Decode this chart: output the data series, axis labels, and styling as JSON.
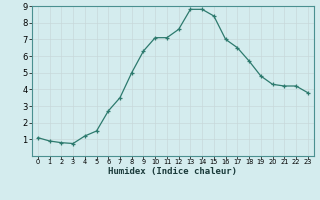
{
  "x": [
    0,
    1,
    2,
    3,
    4,
    5,
    6,
    7,
    8,
    9,
    10,
    11,
    12,
    13,
    14,
    15,
    16,
    17,
    18,
    19,
    20,
    21,
    22,
    23
  ],
  "y": [
    1.1,
    0.9,
    0.8,
    0.75,
    1.2,
    1.5,
    2.7,
    3.5,
    5.0,
    6.3,
    7.1,
    7.1,
    7.6,
    8.8,
    8.8,
    8.4,
    7.0,
    6.5,
    5.7,
    4.8,
    4.3,
    4.2,
    4.2,
    3.8
  ],
  "xlabel": "Humidex (Indice chaleur)",
  "xlim_min": -0.5,
  "xlim_max": 23.5,
  "ylim_min": 0,
  "ylim_max": 9,
  "xticks": [
    0,
    1,
    2,
    3,
    4,
    5,
    6,
    7,
    8,
    9,
    10,
    11,
    12,
    13,
    14,
    15,
    16,
    17,
    18,
    19,
    20,
    21,
    22,
    23
  ],
  "yticks": [
    1,
    2,
    3,
    4,
    5,
    6,
    7,
    8,
    9
  ],
  "line_color": "#2d7a6e",
  "marker": "+",
  "bg_color": "#d4ecee",
  "grid_major_color": "#c8d8da",
  "grid_minor_color": "#dce8ea",
  "spine_color": "#4a9090"
}
